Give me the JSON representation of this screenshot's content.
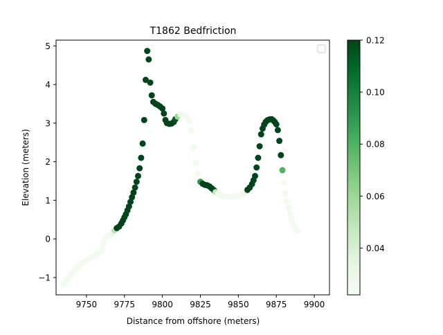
{
  "chart_data": {
    "type": "scatter",
    "title": "T1862 Bedfriction",
    "xlabel": "Distance from offshore (meters)",
    "ylabel": "Elevation (meters)",
    "xlim": [
      9730,
      9910
    ],
    "ylim": [
      -1.45,
      5.15
    ],
    "x_ticks": [
      9750,
      9775,
      9800,
      9825,
      9850,
      9875,
      9900
    ],
    "y_ticks": [
      -1,
      0,
      1,
      2,
      3,
      4,
      5
    ],
    "grid": false,
    "legend": {
      "placement": "top-right",
      "entries": []
    },
    "colorbar": {
      "cmap": "Greens",
      "range": [
        0.022,
        0.12
      ],
      "ticks": [
        0.04,
        0.06,
        0.08,
        0.1,
        0.12
      ],
      "tick_labels": [
        "0.04",
        "0.06",
        "0.08",
        "0.10",
        "0.12"
      ],
      "colors": [
        "#f7fcf5",
        "#e5f5e0",
        "#c7e9c0",
        "#a1d99b",
        "#74c476",
        "#41ab5d",
        "#238b45",
        "#006d2c",
        "#00441b"
      ]
    },
    "points": [
      [
        9735.0,
        -1.17,
        0.025
      ],
      [
        9736.5,
        -1.09,
        0.025
      ],
      [
        9738.0,
        -1.01,
        0.025
      ],
      [
        9739.5,
        -0.93,
        0.025
      ],
      [
        9741.0,
        -0.86,
        0.025
      ],
      [
        9742.5,
        -0.79,
        0.025
      ],
      [
        9744.0,
        -0.73,
        0.025
      ],
      [
        9745.5,
        -0.68,
        0.025
      ],
      [
        9747.0,
        -0.63,
        0.025
      ],
      [
        9748.5,
        -0.59,
        0.025
      ],
      [
        9750.0,
        -0.55,
        0.025
      ],
      [
        9751.5,
        -0.51,
        0.025
      ],
      [
        9753.0,
        -0.48,
        0.025
      ],
      [
        9754.5,
        -0.45,
        0.025
      ],
      [
        9756.0,
        -0.42,
        0.025
      ],
      [
        9757.5,
        -0.38,
        0.025
      ],
      [
        9759.0,
        -0.33,
        0.025
      ],
      [
        9760.5,
        -0.25,
        0.025
      ],
      [
        9761.5,
        -0.1,
        0.025
      ],
      [
        9762.5,
        0.02,
        0.025
      ],
      [
        9764.0,
        0.06,
        0.025
      ],
      [
        9765.5,
        0.1,
        0.025
      ],
      [
        9767.0,
        0.16,
        0.03
      ],
      [
        9768.5,
        0.22,
        0.05
      ],
      [
        9770.0,
        0.28,
        0.12
      ],
      [
        9771.5,
        0.32,
        0.12
      ],
      [
        9773.0,
        0.4,
        0.12
      ],
      [
        9774.0,
        0.48,
        0.12
      ],
      [
        9775.0,
        0.56,
        0.12
      ],
      [
        9776.0,
        0.64,
        0.12
      ],
      [
        9777.0,
        0.74,
        0.12
      ],
      [
        9778.0,
        0.84,
        0.12
      ],
      [
        9779.0,
        0.96,
        0.12
      ],
      [
        9780.0,
        1.08,
        0.12
      ],
      [
        9781.0,
        1.2,
        0.12
      ],
      [
        9782.0,
        1.33,
        0.12
      ],
      [
        9783.0,
        1.48,
        0.12
      ],
      [
        9784.0,
        1.63,
        0.12
      ],
      [
        9785.0,
        1.83,
        0.12
      ],
      [
        9786.0,
        2.1,
        0.12
      ],
      [
        9787.0,
        2.47,
        0.12
      ],
      [
        9788.0,
        3.08,
        0.12
      ],
      [
        9789.0,
        4.12,
        0.12
      ],
      [
        9790.0,
        4.87,
        0.12
      ],
      [
        9791.0,
        4.65,
        0.12
      ],
      [
        9792.0,
        4.05,
        0.12
      ],
      [
        9793.0,
        3.72,
        0.12
      ],
      [
        9794.0,
        3.55,
        0.12
      ],
      [
        9795.5,
        3.5,
        0.12
      ],
      [
        9797.0,
        3.47,
        0.12
      ],
      [
        9798.5,
        3.43,
        0.12
      ],
      [
        9800.0,
        3.38,
        0.12
      ],
      [
        9801.0,
        3.25,
        0.12
      ],
      [
        9802.0,
        3.08,
        0.12
      ],
      [
        9803.0,
        3.0,
        0.12
      ],
      [
        9804.5,
        2.98,
        0.12
      ],
      [
        9806.0,
        2.99,
        0.12
      ],
      [
        9807.5,
        3.03,
        0.12
      ],
      [
        9808.5,
        3.1,
        0.115
      ],
      [
        9810.0,
        3.17,
        0.06
      ],
      [
        9812.0,
        3.22,
        0.03
      ],
      [
        9814.0,
        3.2,
        0.025
      ],
      [
        9816.0,
        3.16,
        0.025
      ],
      [
        9817.5,
        3.05,
        0.025
      ],
      [
        9819.0,
        2.8,
        0.025
      ],
      [
        9820.5,
        2.37,
        0.025
      ],
      [
        9822.0,
        1.97,
        0.025
      ],
      [
        9823.5,
        1.7,
        0.025
      ],
      [
        9825.0,
        1.48,
        0.09
      ],
      [
        9826.5,
        1.43,
        0.12
      ],
      [
        9828.0,
        1.4,
        0.12
      ],
      [
        9829.5,
        1.39,
        0.12
      ],
      [
        9831.0,
        1.36,
        0.12
      ],
      [
        9832.5,
        1.31,
        0.12
      ],
      [
        9834.0,
        1.26,
        0.12
      ],
      [
        9835.0,
        1.21,
        0.05
      ],
      [
        9836.5,
        1.17,
        0.025
      ],
      [
        9838.0,
        1.14,
        0.025
      ],
      [
        9839.5,
        1.12,
        0.025
      ],
      [
        9841.0,
        1.1,
        0.025
      ],
      [
        9842.5,
        1.09,
        0.025
      ],
      [
        9844.0,
        1.09,
        0.025
      ],
      [
        9845.5,
        1.09,
        0.025
      ],
      [
        9847.0,
        1.1,
        0.025
      ],
      [
        9848.5,
        1.11,
        0.025
      ],
      [
        9850.0,
        1.12,
        0.025
      ],
      [
        9851.5,
        1.14,
        0.025
      ],
      [
        9853.0,
        1.17,
        0.025
      ],
      [
        9854.5,
        1.2,
        0.03
      ],
      [
        9856.0,
        1.27,
        0.12
      ],
      [
        9857.5,
        1.33,
        0.12
      ],
      [
        9859.0,
        1.42,
        0.12
      ],
      [
        9860.0,
        1.52,
        0.12
      ],
      [
        9861.0,
        1.63,
        0.12
      ],
      [
        9862.0,
        1.85,
        0.12
      ],
      [
        9863.0,
        2.1,
        0.12
      ],
      [
        9864.0,
        2.4,
        0.12
      ],
      [
        9865.0,
        2.71,
        0.12
      ],
      [
        9866.0,
        2.86,
        0.12
      ],
      [
        9867.0,
        2.96,
        0.12
      ],
      [
        9868.0,
        3.03,
        0.12
      ],
      [
        9869.0,
        3.07,
        0.12
      ],
      [
        9870.0,
        3.09,
        0.12
      ],
      [
        9871.0,
        3.1,
        0.12
      ],
      [
        9872.0,
        3.1,
        0.12
      ],
      [
        9873.0,
        3.07,
        0.12
      ],
      [
        9874.0,
        3.03,
        0.12
      ],
      [
        9875.0,
        2.97,
        0.12
      ],
      [
        9876.0,
        2.82,
        0.12
      ],
      [
        9877.0,
        2.54,
        0.12
      ],
      [
        9878.0,
        2.17,
        0.12
      ],
      [
        9879.0,
        1.78,
        0.08
      ],
      [
        9880.0,
        1.45,
        0.025
      ],
      [
        9881.0,
        1.18,
        0.025
      ],
      [
        9882.0,
        0.98,
        0.025
      ],
      [
        9883.0,
        0.8,
        0.025
      ],
      [
        9884.0,
        0.65,
        0.025
      ],
      [
        9885.0,
        0.51,
        0.025
      ],
      [
        9886.0,
        0.38,
        0.025
      ],
      [
        9887.5,
        0.26,
        0.025
      ],
      [
        9889.0,
        0.21,
        0.025
      ]
    ]
  }
}
